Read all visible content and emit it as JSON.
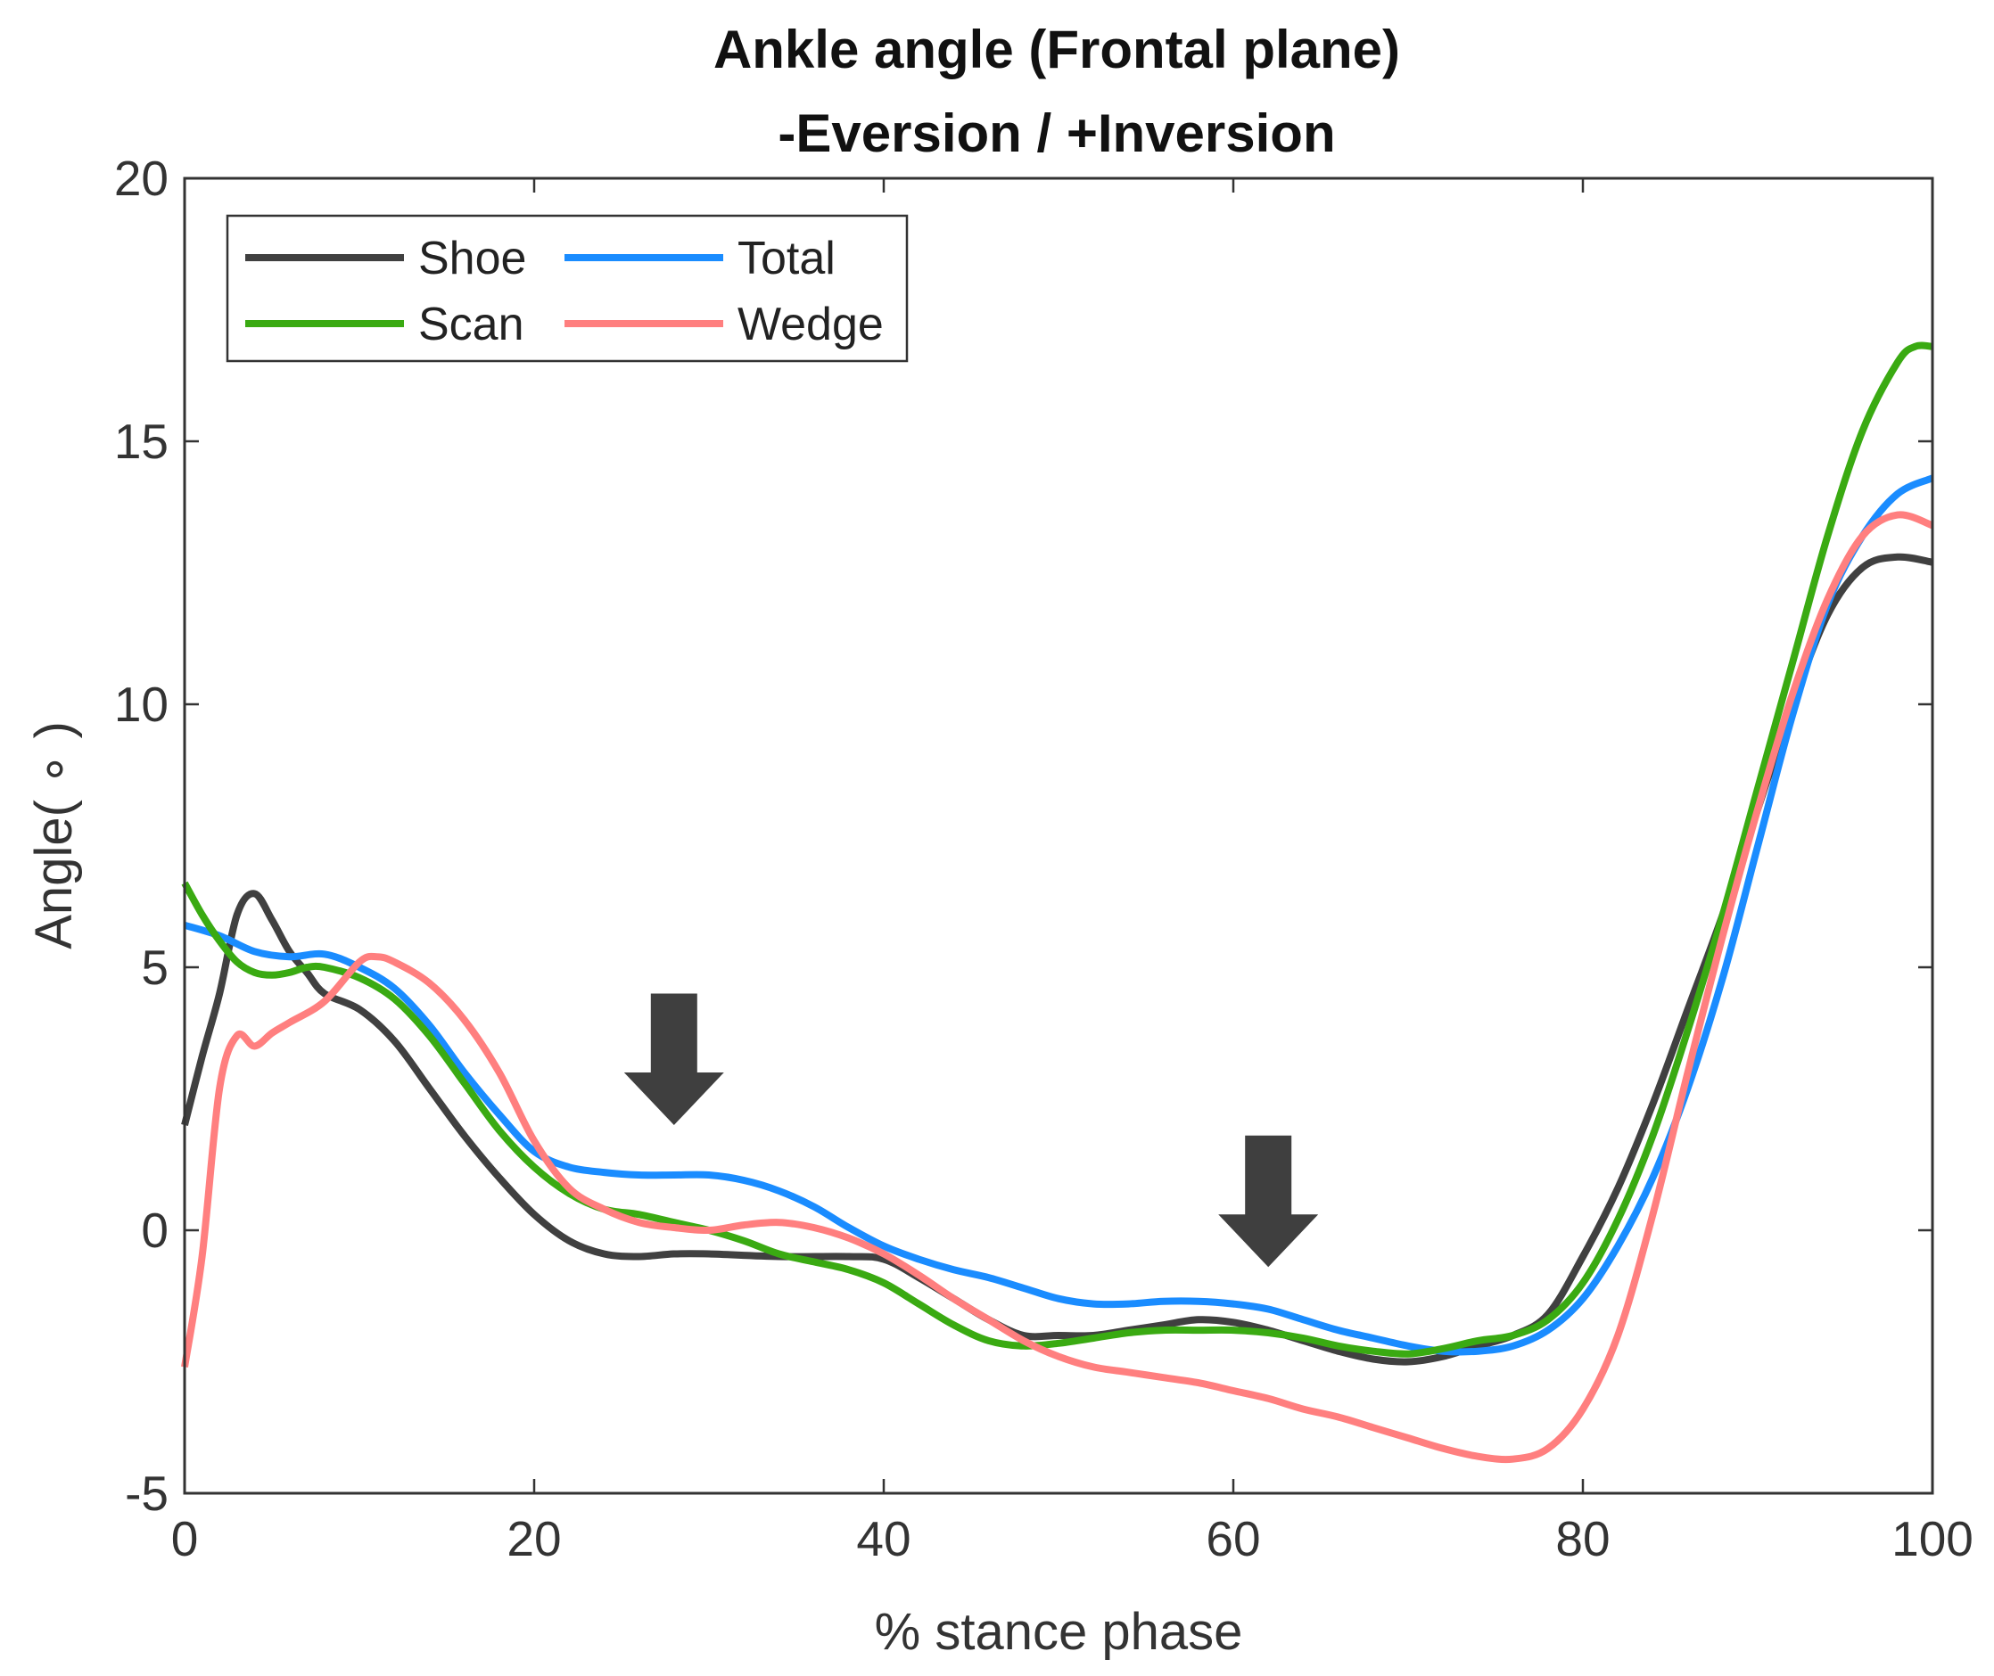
{
  "chart_data": {
    "type": "line",
    "title": [
      "Ankle angle (Frontal plane)",
      "-Eversion / +Inversion"
    ],
    "xlabel": "% stance phase",
    "ylabel": "Angle( ∘ )",
    "xlim": [
      0,
      100
    ],
    "ylim": [
      -5,
      20
    ],
    "xticks": [
      0,
      20,
      40,
      60,
      80,
      100
    ],
    "yticks": [
      -5,
      0,
      5,
      10,
      15,
      20
    ],
    "grid": false,
    "legend_position": "top-left",
    "series": [
      {
        "name": "Shoe",
        "color": "#404040",
        "points": [
          [
            0,
            2.0
          ],
          [
            1,
            3.3
          ],
          [
            2,
            4.5
          ],
          [
            3,
            6.0
          ],
          [
            4,
            6.4
          ],
          [
            5,
            5.9
          ],
          [
            6,
            5.3
          ],
          [
            7,
            4.9
          ],
          [
            8,
            4.5
          ],
          [
            10,
            4.2
          ],
          [
            12,
            3.6
          ],
          [
            14,
            2.7
          ],
          [
            16,
            1.8
          ],
          [
            18,
            1.0
          ],
          [
            20,
            0.3
          ],
          [
            22,
            -0.2
          ],
          [
            24,
            -0.45
          ],
          [
            26,
            -0.5
          ],
          [
            28,
            -0.45
          ],
          [
            30,
            -0.45
          ],
          [
            34,
            -0.5
          ],
          [
            38,
            -0.5
          ],
          [
            40,
            -0.55
          ],
          [
            42,
            -0.9
          ],
          [
            44,
            -1.3
          ],
          [
            46,
            -1.7
          ],
          [
            48,
            -2.0
          ],
          [
            50,
            -2.0
          ],
          [
            52,
            -2.0
          ],
          [
            54,
            -1.9
          ],
          [
            56,
            -1.8
          ],
          [
            58,
            -1.7
          ],
          [
            60,
            -1.75
          ],
          [
            62,
            -1.9
          ],
          [
            64,
            -2.1
          ],
          [
            66,
            -2.3
          ],
          [
            68,
            -2.45
          ],
          [
            70,
            -2.5
          ],
          [
            72,
            -2.4
          ],
          [
            74,
            -2.2
          ],
          [
            76,
            -2.0
          ],
          [
            78,
            -1.6
          ],
          [
            80,
            -0.5
          ],
          [
            82,
            0.8
          ],
          [
            84,
            2.4
          ],
          [
            86,
            4.2
          ],
          [
            88,
            6.0
          ],
          [
            90,
            8.0
          ],
          [
            92,
            10.0
          ],
          [
            94,
            11.7
          ],
          [
            96,
            12.6
          ],
          [
            98,
            12.8
          ],
          [
            100,
            12.7
          ]
        ]
      },
      {
        "name": "Total",
        "color": "#1a8cff",
        "points": [
          [
            0,
            5.8
          ],
          [
            2,
            5.6
          ],
          [
            4,
            5.3
          ],
          [
            6,
            5.2
          ],
          [
            8,
            5.25
          ],
          [
            10,
            5.0
          ],
          [
            12,
            4.6
          ],
          [
            14,
            3.9
          ],
          [
            16,
            3.0
          ],
          [
            18,
            2.2
          ],
          [
            20,
            1.5
          ],
          [
            22,
            1.2
          ],
          [
            24,
            1.1
          ],
          [
            26,
            1.05
          ],
          [
            28,
            1.05
          ],
          [
            30,
            1.05
          ],
          [
            32,
            0.95
          ],
          [
            34,
            0.75
          ],
          [
            36,
            0.45
          ],
          [
            38,
            0.05
          ],
          [
            40,
            -0.3
          ],
          [
            42,
            -0.55
          ],
          [
            44,
            -0.75
          ],
          [
            46,
            -0.9
          ],
          [
            48,
            -1.1
          ],
          [
            50,
            -1.3
          ],
          [
            52,
            -1.4
          ],
          [
            54,
            -1.4
          ],
          [
            56,
            -1.35
          ],
          [
            58,
            -1.35
          ],
          [
            60,
            -1.4
          ],
          [
            62,
            -1.5
          ],
          [
            64,
            -1.7
          ],
          [
            66,
            -1.9
          ],
          [
            68,
            -2.05
          ],
          [
            70,
            -2.2
          ],
          [
            72,
            -2.3
          ],
          [
            74,
            -2.3
          ],
          [
            76,
            -2.2
          ],
          [
            78,
            -1.9
          ],
          [
            80,
            -1.3
          ],
          [
            82,
            -0.3
          ],
          [
            84,
            1.0
          ],
          [
            86,
            2.7
          ],
          [
            88,
            4.8
          ],
          [
            90,
            7.3
          ],
          [
            92,
            9.8
          ],
          [
            94,
            11.9
          ],
          [
            96,
            13.2
          ],
          [
            98,
            14.0
          ],
          [
            100,
            14.3
          ]
        ]
      },
      {
        "name": "Scan",
        "color": "#3aaa12",
        "points": [
          [
            0,
            6.6
          ],
          [
            1,
            6.0
          ],
          [
            2,
            5.5
          ],
          [
            3,
            5.1
          ],
          [
            4,
            4.9
          ],
          [
            5,
            4.85
          ],
          [
            6,
            4.9
          ],
          [
            7,
            5.0
          ],
          [
            8,
            5.0
          ],
          [
            10,
            4.8
          ],
          [
            12,
            4.4
          ],
          [
            14,
            3.7
          ],
          [
            16,
            2.8
          ],
          [
            18,
            1.9
          ],
          [
            20,
            1.2
          ],
          [
            22,
            0.7
          ],
          [
            24,
            0.4
          ],
          [
            26,
            0.3
          ],
          [
            28,
            0.15
          ],
          [
            30,
            0.0
          ],
          [
            32,
            -0.2
          ],
          [
            34,
            -0.45
          ],
          [
            36,
            -0.6
          ],
          [
            38,
            -0.75
          ],
          [
            40,
            -1.0
          ],
          [
            42,
            -1.4
          ],
          [
            44,
            -1.8
          ],
          [
            46,
            -2.1
          ],
          [
            48,
            -2.2
          ],
          [
            50,
            -2.15
          ],
          [
            52,
            -2.05
          ],
          [
            54,
            -1.95
          ],
          [
            56,
            -1.9
          ],
          [
            58,
            -1.9
          ],
          [
            60,
            -1.9
          ],
          [
            62,
            -1.95
          ],
          [
            64,
            -2.05
          ],
          [
            66,
            -2.2
          ],
          [
            68,
            -2.3
          ],
          [
            70,
            -2.35
          ],
          [
            72,
            -2.25
          ],
          [
            74,
            -2.1
          ],
          [
            76,
            -2.0
          ],
          [
            78,
            -1.7
          ],
          [
            80,
            -1.0
          ],
          [
            82,
            0.2
          ],
          [
            84,
            1.8
          ],
          [
            86,
            3.8
          ],
          [
            88,
            6.0
          ],
          [
            90,
            8.4
          ],
          [
            92,
            10.8
          ],
          [
            94,
            13.2
          ],
          [
            96,
            15.2
          ],
          [
            98,
            16.5
          ],
          [
            99,
            16.8
          ],
          [
            100,
            16.8
          ]
        ]
      },
      {
        "name": "Wedge",
        "color": "#ff7f7f",
        "points": [
          [
            0,
            -2.6
          ],
          [
            1,
            -0.5
          ],
          [
            2,
            2.7
          ],
          [
            3,
            3.7
          ],
          [
            4,
            3.5
          ],
          [
            5,
            3.75
          ],
          [
            6,
            3.95
          ],
          [
            8,
            4.35
          ],
          [
            10,
            5.1
          ],
          [
            11,
            5.2
          ],
          [
            12,
            5.1
          ],
          [
            14,
            4.7
          ],
          [
            16,
            4.0
          ],
          [
            18,
            3.0
          ],
          [
            20,
            1.7
          ],
          [
            22,
            0.8
          ],
          [
            24,
            0.4
          ],
          [
            26,
            0.15
          ],
          [
            28,
            0.05
          ],
          [
            30,
            0.0
          ],
          [
            32,
            0.1
          ],
          [
            34,
            0.15
          ],
          [
            36,
            0.05
          ],
          [
            38,
            -0.15
          ],
          [
            40,
            -0.45
          ],
          [
            42,
            -0.85
          ],
          [
            44,
            -1.3
          ],
          [
            46,
            -1.7
          ],
          [
            48,
            -2.1
          ],
          [
            50,
            -2.4
          ],
          [
            52,
            -2.6
          ],
          [
            54,
            -2.7
          ],
          [
            56,
            -2.8
          ],
          [
            58,
            -2.9
          ],
          [
            60,
            -3.05
          ],
          [
            62,
            -3.2
          ],
          [
            64,
            -3.4
          ],
          [
            66,
            -3.55
          ],
          [
            68,
            -3.75
          ],
          [
            70,
            -3.95
          ],
          [
            72,
            -4.15
          ],
          [
            74,
            -4.3
          ],
          [
            76,
            -4.35
          ],
          [
            78,
            -4.15
          ],
          [
            80,
            -3.4
          ],
          [
            82,
            -2.0
          ],
          [
            84,
            0.3
          ],
          [
            86,
            3.0
          ],
          [
            88,
            5.6
          ],
          [
            90,
            8.0
          ],
          [
            92,
            10.2
          ],
          [
            94,
            12.0
          ],
          [
            96,
            13.2
          ],
          [
            98,
            13.6
          ],
          [
            100,
            13.4
          ]
        ]
      }
    ],
    "annotations": [
      {
        "type": "arrow-down",
        "x": 28,
        "y_top": 4.5,
        "y_tip": 2.0
      },
      {
        "type": "arrow-down",
        "x": 62,
        "y_top": 1.8,
        "y_tip": -0.7
      }
    ]
  }
}
